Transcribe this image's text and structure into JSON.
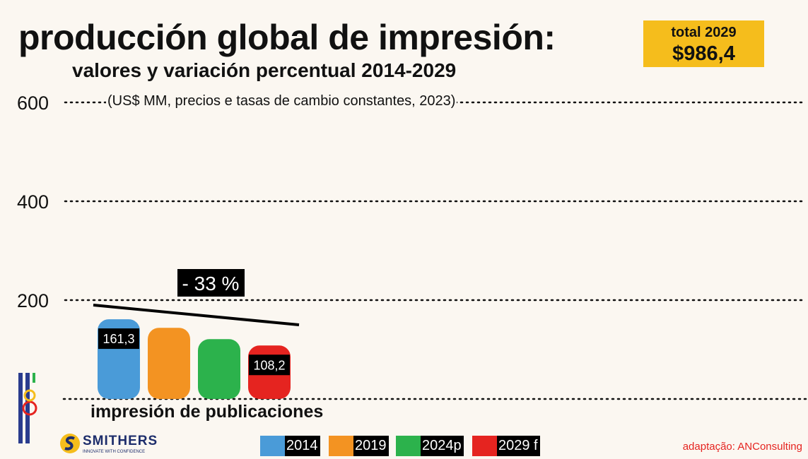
{
  "header": {
    "title": "producción global de impresión:",
    "subtitle": "valores y variación percentual 2014-2029"
  },
  "total_box": {
    "label": "total 2029",
    "value": "$986,4"
  },
  "units_note": "(US$ MM, precios e tasas de cambio constantes, 2023)",
  "chart_data": {
    "type": "bar",
    "title": "producción global de impresión:",
    "subtitle": "valores y variación percentual 2014-2029",
    "categories": [
      "impresión de publicaciones"
    ],
    "series": [
      {
        "name": "2014",
        "color": "#4a9bd8",
        "values": [
          161.3
        ],
        "label": "161,3"
      },
      {
        "name": "2019",
        "color": "#f39322",
        "values": [
          144
        ],
        "label": ""
      },
      {
        "name": "2024p",
        "color": "#2cb24c",
        "values": [
          121
        ],
        "label": ""
      },
      {
        "name": "2029 f",
        "color": "#e52420",
        "values": [
          108.2
        ],
        "label": "108,2"
      }
    ],
    "yticks": [
      200,
      400,
      600
    ],
    "ytick_labels": [
      "200",
      "400",
      "600"
    ],
    "ylim": [
      0,
      600
    ],
    "grid": true,
    "legend": "bottom-center",
    "annotation": {
      "text": "- 33 %",
      "from_value": 190,
      "to_value": 150
    }
  },
  "brands": {
    "unigraf_icon": "unigraf-logo",
    "smithers_name": "SMITHERS",
    "smithers_tagline": "INNOVATE WITH CONFIDENCE"
  },
  "credit": "adaptação: ANConsulting"
}
